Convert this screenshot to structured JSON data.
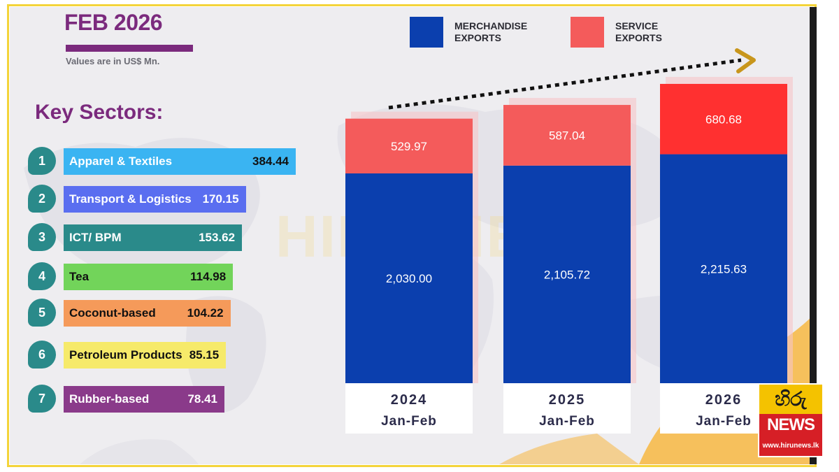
{
  "header": {
    "title": "FEB 2026",
    "subtitle": "Values are in US$ Mn."
  },
  "legend": [
    {
      "label": "MERCHANDISE EXPORTS",
      "color": "#0b3fae"
    },
    {
      "label": "SERVICE EXPORTS",
      "color": "#f45b5b"
    }
  ],
  "sectors": {
    "heading": "Key Sectors:",
    "items": [
      {
        "rank": "1",
        "name": "Apparel & Textiles",
        "value": "384.44",
        "color": "#3ab4f2",
        "text_color": "#ffffff",
        "value_color": "#111111"
      },
      {
        "rank": "2",
        "name": "Transport & Logistics",
        "value": "170.15",
        "color": "#5a6ef0",
        "text_color": "#ffffff",
        "value_color": "#ffffff"
      },
      {
        "rank": "3",
        "name": "ICT/ BPM",
        "value": "153.62",
        "color": "#2a8a8a",
        "text_color": "#ffffff",
        "value_color": "#ffffff"
      },
      {
        "rank": "4",
        "name": "Tea",
        "value": "114.98",
        "color": "#72d45a",
        "text_color": "#111111",
        "value_color": "#111111"
      },
      {
        "rank": "5",
        "name": "Coconut-based",
        "value": "104.22",
        "color": "#f59a5a",
        "text_color": "#111111",
        "value_color": "#111111"
      },
      {
        "rank": "6",
        "name": "Petroleum Products",
        "value": "85.15",
        "color": "#f6ea6a",
        "text_color": "#111111",
        "value_color": "#111111"
      },
      {
        "rank": "7",
        "name": "Rubber-based",
        "value": "78.41",
        "color": "#8a3a8a",
        "text_color": "#ffffff",
        "value_color": "#ffffff"
      }
    ]
  },
  "chart_data": {
    "type": "bar",
    "stacked": true,
    "categories": [
      [
        "2024",
        "Jan-Feb"
      ],
      [
        "2025",
        "Jan-Feb"
      ],
      [
        "2026",
        "Jan-Feb"
      ]
    ],
    "series": [
      {
        "name": "MERCHANDISE EXPORTS",
        "values": [
          2030.0,
          2105.72,
          2215.63
        ],
        "labels": [
          "2,030.00",
          "2,105.72",
          "2,215.63"
        ],
        "color": "#0b3fae"
      },
      {
        "name": "SERVICE EXPORTS",
        "values": [
          529.97,
          587.04,
          680.68
        ],
        "labels": [
          "529.97",
          "587.04",
          "680.68"
        ],
        "color": "#f45b5b",
        "latest_color": "#ff3030"
      }
    ],
    "legend_position": "top",
    "trend_arrow": true,
    "grid": false
  },
  "watermark": {
    "text": "HIRU NEWS"
  },
  "logo": {
    "glyph": "හිරු",
    "brand": "NEWS",
    "url": "www.hirunews.lk"
  }
}
